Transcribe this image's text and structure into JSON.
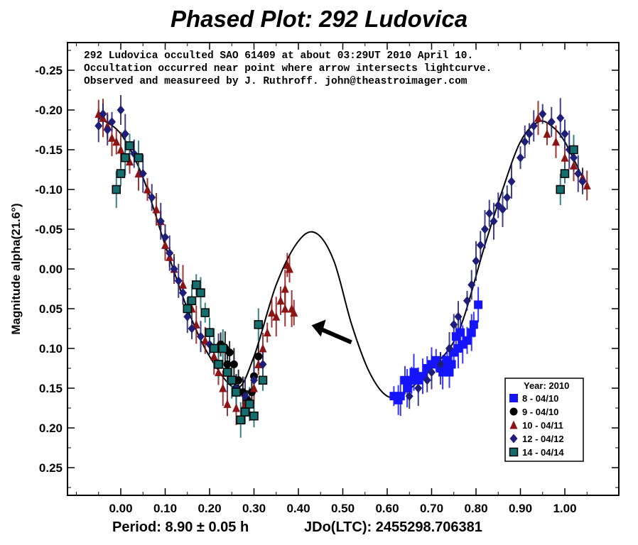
{
  "chart_data": {
    "type": "scatter",
    "title": "Phased Plot: 292 Ludovica",
    "annotation_lines": [
      "292 Ludovica occulted SAO 61409 at about 03:29UT 2010 April 10.",
      "Occultation occurred near point where arrow intersects lightcurve.",
      "Observed and measureed by J. Ruthroff. john@theastroimager.com"
    ],
    "ylabel": "Magnitude alpha(21.6°)",
    "xlim": [
      -0.12,
      1.12
    ],
    "ylim": [
      0.3,
      -0.285
    ],
    "y_inverted": true,
    "xticks": [
      "0.00",
      "0.10",
      "0.20",
      "0.30",
      "0.40",
      "0.50",
      "0.60",
      "0.70",
      "0.80",
      "0.90",
      "1.00"
    ],
    "yticks": [
      "-0.25",
      "-0.20",
      "-0.15",
      "-0.10",
      "-0.05",
      "0.00",
      "0.05",
      "0.10",
      "0.15",
      "0.20",
      "0.25"
    ],
    "grid": false,
    "legend_placement": "lower-right",
    "legend_title": "Year: 2010",
    "footer_period": "Period: 8.90 ± 0.05 h",
    "footer_epoch": "JDo(LTC): 2455298.706381",
    "arrow_target": [
      0.385,
      0.07
    ],
    "series": [
      {
        "name": "8 - 04/10",
        "marker": "square",
        "color": "#1414ff",
        "points": [
          [
            0.615,
            0.16
          ],
          [
            0.625,
            0.165
          ],
          [
            0.63,
            0.16
          ],
          [
            0.64,
            0.14
          ],
          [
            0.645,
            0.15
          ],
          [
            0.655,
            0.14
          ],
          [
            0.66,
            0.13
          ],
          [
            0.67,
            0.14
          ],
          [
            0.68,
            0.135
          ],
          [
            0.69,
            0.125
          ],
          [
            0.7,
            0.12
          ],
          [
            0.71,
            0.115
          ],
          [
            0.72,
            0.125
          ],
          [
            0.73,
            0.12
          ],
          [
            0.74,
            0.13
          ],
          [
            0.745,
            0.12
          ],
          [
            0.75,
            0.105
          ],
          [
            0.76,
            0.1
          ],
          [
            0.765,
            0.08
          ],
          [
            0.77,
            0.095
          ],
          [
            0.78,
            0.09
          ],
          [
            0.79,
            0.08
          ],
          [
            0.795,
            0.07
          ],
          [
            0.805,
            0.045
          ],
          [
            0.735,
            0.115
          ],
          [
            0.725,
            0.13
          ],
          [
            0.755,
            0.085
          ]
        ]
      },
      {
        "name": "9 - 04/10",
        "marker": "circle",
        "color": "#000000",
        "points": [
          [
            0.225,
            0.095
          ],
          [
            0.235,
            0.1
          ],
          [
            0.245,
            0.105
          ],
          [
            0.255,
            0.12
          ],
          [
            0.265,
            0.14
          ],
          [
            0.275,
            0.155
          ],
          [
            0.285,
            0.165
          ],
          [
            0.295,
            0.155
          ],
          [
            0.3,
            0.135
          ],
          [
            0.31,
            0.11
          ],
          [
            0.24,
            0.12
          ],
          [
            0.26,
            0.15
          ]
        ]
      },
      {
        "name": "10 - 04/11",
        "marker": "triangle",
        "color": "#8c1414",
        "points": [
          [
            -0.05,
            -0.195
          ],
          [
            -0.04,
            -0.19
          ],
          [
            -0.03,
            -0.18
          ],
          [
            -0.02,
            -0.165
          ],
          [
            -0.01,
            -0.16
          ],
          [
            0.0,
            -0.15
          ],
          [
            0.02,
            -0.135
          ],
          [
            0.04,
            -0.12
          ],
          [
            0.06,
            -0.1
          ],
          [
            0.08,
            -0.075
          ],
          [
            0.09,
            -0.06
          ],
          [
            0.1,
            -0.03
          ],
          [
            0.11,
            -0.015
          ],
          [
            0.12,
            0.0
          ],
          [
            0.14,
            0.02
          ],
          [
            0.16,
            0.05
          ],
          [
            0.17,
            0.07
          ],
          [
            0.19,
            0.09
          ],
          [
            0.21,
            0.11
          ],
          [
            0.22,
            0.13
          ],
          [
            0.23,
            0.15
          ],
          [
            0.24,
            0.17
          ],
          [
            0.26,
            0.175
          ],
          [
            0.28,
            0.17
          ],
          [
            0.3,
            0.15
          ],
          [
            0.31,
            0.12
          ],
          [
            0.32,
            0.1
          ],
          [
            0.33,
            0.08
          ],
          [
            0.34,
            0.055
          ],
          [
            0.35,
            0.06
          ],
          [
            0.36,
            0.04
          ],
          [
            0.37,
            0.025
          ],
          [
            0.38,
            0.0
          ],
          [
            0.385,
            0.05
          ],
          [
            0.39,
            0.055
          ],
          [
            0.37,
            0.05
          ],
          [
            0.375,
            -0.005
          ],
          [
            0.94,
            -0.19
          ],
          [
            0.96,
            -0.17
          ],
          [
            0.98,
            -0.16
          ],
          [
            1.0,
            -0.14
          ],
          [
            1.02,
            -0.13
          ],
          [
            1.04,
            -0.115
          ],
          [
            1.05,
            -0.105
          ]
        ]
      },
      {
        "name": "12 - 04/12",
        "marker": "diamond",
        "color": "#1e1e78",
        "points": [
          [
            -0.05,
            -0.18
          ],
          [
            -0.04,
            -0.195
          ],
          [
            -0.03,
            -0.175
          ],
          [
            -0.02,
            -0.185
          ],
          [
            0.0,
            -0.2
          ],
          [
            0.01,
            -0.17
          ],
          [
            0.03,
            -0.145
          ],
          [
            0.05,
            -0.12
          ],
          [
            0.07,
            -0.09
          ],
          [
            0.09,
            -0.06
          ],
          [
            0.1,
            -0.04
          ],
          [
            0.11,
            -0.02
          ],
          [
            0.12,
            0.0
          ],
          [
            0.13,
            0.015
          ],
          [
            0.14,
            0.03
          ],
          [
            0.15,
            0.06
          ],
          [
            0.16,
            0.075
          ],
          [
            0.18,
            0.085
          ],
          [
            0.2,
            0.095
          ],
          [
            0.22,
            0.1
          ],
          [
            0.24,
            0.13
          ],
          [
            0.26,
            0.15
          ],
          [
            0.28,
            0.16
          ],
          [
            0.3,
            0.14
          ],
          [
            0.32,
            0.12
          ],
          [
            0.65,
            0.16
          ],
          [
            0.67,
            0.15
          ],
          [
            0.69,
            0.14
          ],
          [
            0.7,
            0.13
          ],
          [
            0.72,
            0.12
          ],
          [
            0.74,
            0.1
          ],
          [
            0.75,
            0.07
          ],
          [
            0.76,
            0.06
          ],
          [
            0.78,
            0.04
          ],
          [
            0.79,
            0.02
          ],
          [
            0.8,
            -0.01
          ],
          [
            0.81,
            -0.03
          ],
          [
            0.82,
            -0.05
          ],
          [
            0.83,
            -0.07
          ],
          [
            0.84,
            -0.06
          ],
          [
            0.85,
            -0.08
          ],
          [
            0.86,
            -0.075
          ],
          [
            0.87,
            -0.09
          ],
          [
            0.88,
            -0.11
          ],
          [
            0.9,
            -0.14
          ],
          [
            0.91,
            -0.16
          ],
          [
            0.92,
            -0.17
          ],
          [
            0.93,
            -0.18
          ],
          [
            0.95,
            -0.195
          ],
          [
            0.97,
            -0.185
          ],
          [
            0.99,
            -0.19
          ],
          [
            1.0,
            -0.17
          ],
          [
            1.01,
            -0.15
          ],
          [
            1.02,
            -0.14
          ],
          [
            1.03,
            -0.12
          ],
          [
            1.04,
            -0.11
          ]
        ]
      },
      {
        "name": "14 - 04/14",
        "marker": "square-filled",
        "color": "#146e6e",
        "points": [
          [
            -0.01,
            -0.1
          ],
          [
            0.0,
            -0.12
          ],
          [
            0.01,
            -0.14
          ],
          [
            0.02,
            -0.155
          ],
          [
            0.04,
            -0.14
          ],
          [
            0.15,
            0.05
          ],
          [
            0.16,
            0.04
          ],
          [
            0.17,
            0.02
          ],
          [
            0.18,
            0.03
          ],
          [
            0.19,
            0.055
          ],
          [
            0.2,
            0.08
          ],
          [
            0.21,
            0.1
          ],
          [
            0.22,
            0.12
          ],
          [
            0.23,
            0.1
          ],
          [
            0.24,
            0.13
          ],
          [
            0.25,
            0.14
          ],
          [
            0.26,
            0.155
          ],
          [
            0.27,
            0.19
          ],
          [
            0.28,
            0.18
          ],
          [
            0.29,
            0.17
          ],
          [
            0.3,
            0.185
          ],
          [
            0.31,
            0.07
          ],
          [
            0.32,
            0.14
          ],
          [
            0.99,
            -0.1
          ],
          [
            1.0,
            -0.12
          ],
          [
            1.02,
            -0.15
          ]
        ]
      }
    ]
  }
}
